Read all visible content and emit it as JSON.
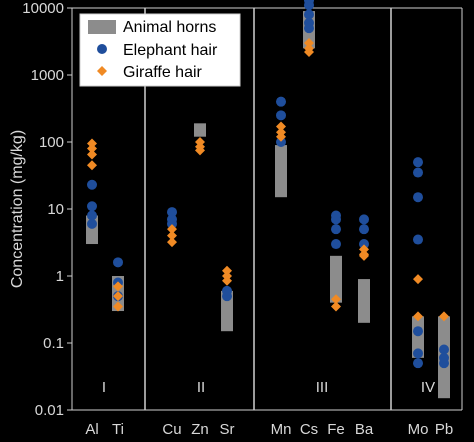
{
  "chart_data": {
    "type": "scatter",
    "yscale": "log",
    "ylim": [
      0.01,
      10000
    ],
    "ylabel": "Concentration (mg/kg)",
    "yticks": [
      "0.01",
      "0.1",
      "1",
      "10",
      "100",
      "1000",
      "10000"
    ],
    "grid": false,
    "legend_position": "top-left",
    "groups": [
      "I",
      "II",
      "III",
      "IV"
    ],
    "categories": [
      "Al",
      "Ti",
      "Cu",
      "Zn",
      "Sr",
      "Mn",
      "Cs",
      "Fe",
      "Ba",
      "Mo",
      "Pb"
    ],
    "series": [
      {
        "name": "Animal horns",
        "marker": "box",
        "color": "#8c8c8c",
        "ranges": [
          [
            3,
            8
          ],
          [
            0.3,
            1.0
          ],
          [
            120,
            190
          ],
          [
            0.15,
            0.6
          ],
          [
            15,
            90
          ],
          [
            2500,
            9000
          ],
          [
            0.4,
            2.0
          ],
          [
            0.2,
            0.9
          ],
          [
            0.06,
            0.25
          ],
          [
            0.015,
            0.25
          ]
        ],
        "category_index": [
          0,
          1,
          3,
          4,
          5,
          6,
          7,
          8,
          9,
          10
        ]
      },
      {
        "name": "Elephant hair",
        "marker": "circle",
        "color": "#1f4e9c",
        "points": [
          {
            "category": "Al",
            "y": [
              23,
              11,
              6,
              8
            ]
          },
          {
            "category": "Ti",
            "y": [
              1.6,
              0.8,
              0.5
            ]
          },
          {
            "category": "Cu",
            "y": [
              9,
              7,
              6
            ]
          },
          {
            "category": "Sr",
            "y": [
              0.5,
              0.6
            ]
          },
          {
            "category": "Mn",
            "y": [
              400,
              250,
              100
            ]
          },
          {
            "category": "Cs",
            "y": [
              13000,
              11000,
              8000,
              6000,
              5000
            ]
          },
          {
            "category": "Fe",
            "y": [
              8,
              7,
              5,
              3
            ]
          },
          {
            "category": "Ba",
            "y": [
              7,
              5,
              3
            ]
          },
          {
            "category": "Mo",
            "y": [
              50,
              35,
              15,
              3.5,
              0.15,
              0.07,
              0.05
            ]
          },
          {
            "category": "Pb",
            "y": [
              0.08,
              0.06,
              0.05
            ]
          }
        ]
      },
      {
        "name": "Giraffe hair",
        "marker": "diamond",
        "color": "#f08a24",
        "points": [
          {
            "category": "Al",
            "y": [
              95,
              80,
              65,
              45
            ]
          },
          {
            "category": "Ti",
            "y": [
              0.7,
              0.5,
              0.35
            ]
          },
          {
            "category": "Cu",
            "y": [
              4,
              3.2,
              5
            ]
          },
          {
            "category": "Zn",
            "y": [
              100,
              85,
              75
            ]
          },
          {
            "category": "Sr",
            "y": [
              1.2,
              1.0,
              0.85
            ]
          },
          {
            "category": "Mn",
            "y": [
              170,
              140,
              120
            ]
          },
          {
            "category": "Cs",
            "y": [
              3000,
              2500,
              2200
            ]
          },
          {
            "category": "Fe",
            "y": [
              0.45,
              0.35
            ]
          },
          {
            "category": "Ba",
            "y": [
              2.5,
              2.1,
              2.0
            ]
          },
          {
            "category": "Mo",
            "y": [
              0.9,
              0.25
            ]
          },
          {
            "category": "Pb",
            "y": [
              0.25
            ]
          }
        ]
      }
    ]
  }
}
